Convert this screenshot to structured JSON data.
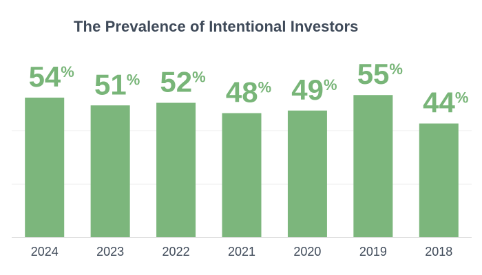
{
  "chart_data": {
    "type": "bar",
    "title": "The Prevalence of Intentional Investors",
    "xlabel": "",
    "ylabel": "",
    "categories": [
      "2024",
      "2023",
      "2022",
      "2021",
      "2020",
      "2019",
      "2018"
    ],
    "values": [
      54,
      51,
      52,
      48,
      49,
      55,
      44
    ],
    "value_labels": [
      "54",
      "51",
      "52",
      "48",
      "49",
      "55",
      "44"
    ],
    "value_suffix": "%",
    "ylim": [
      0,
      60
    ],
    "grid": true,
    "legend": "none",
    "colors": {
      "bar": "#7cb67c",
      "value_label": "#78b578",
      "text": "#3f4a59",
      "grid": "#eeeeee",
      "baseline": "#e0e0e0"
    }
  }
}
